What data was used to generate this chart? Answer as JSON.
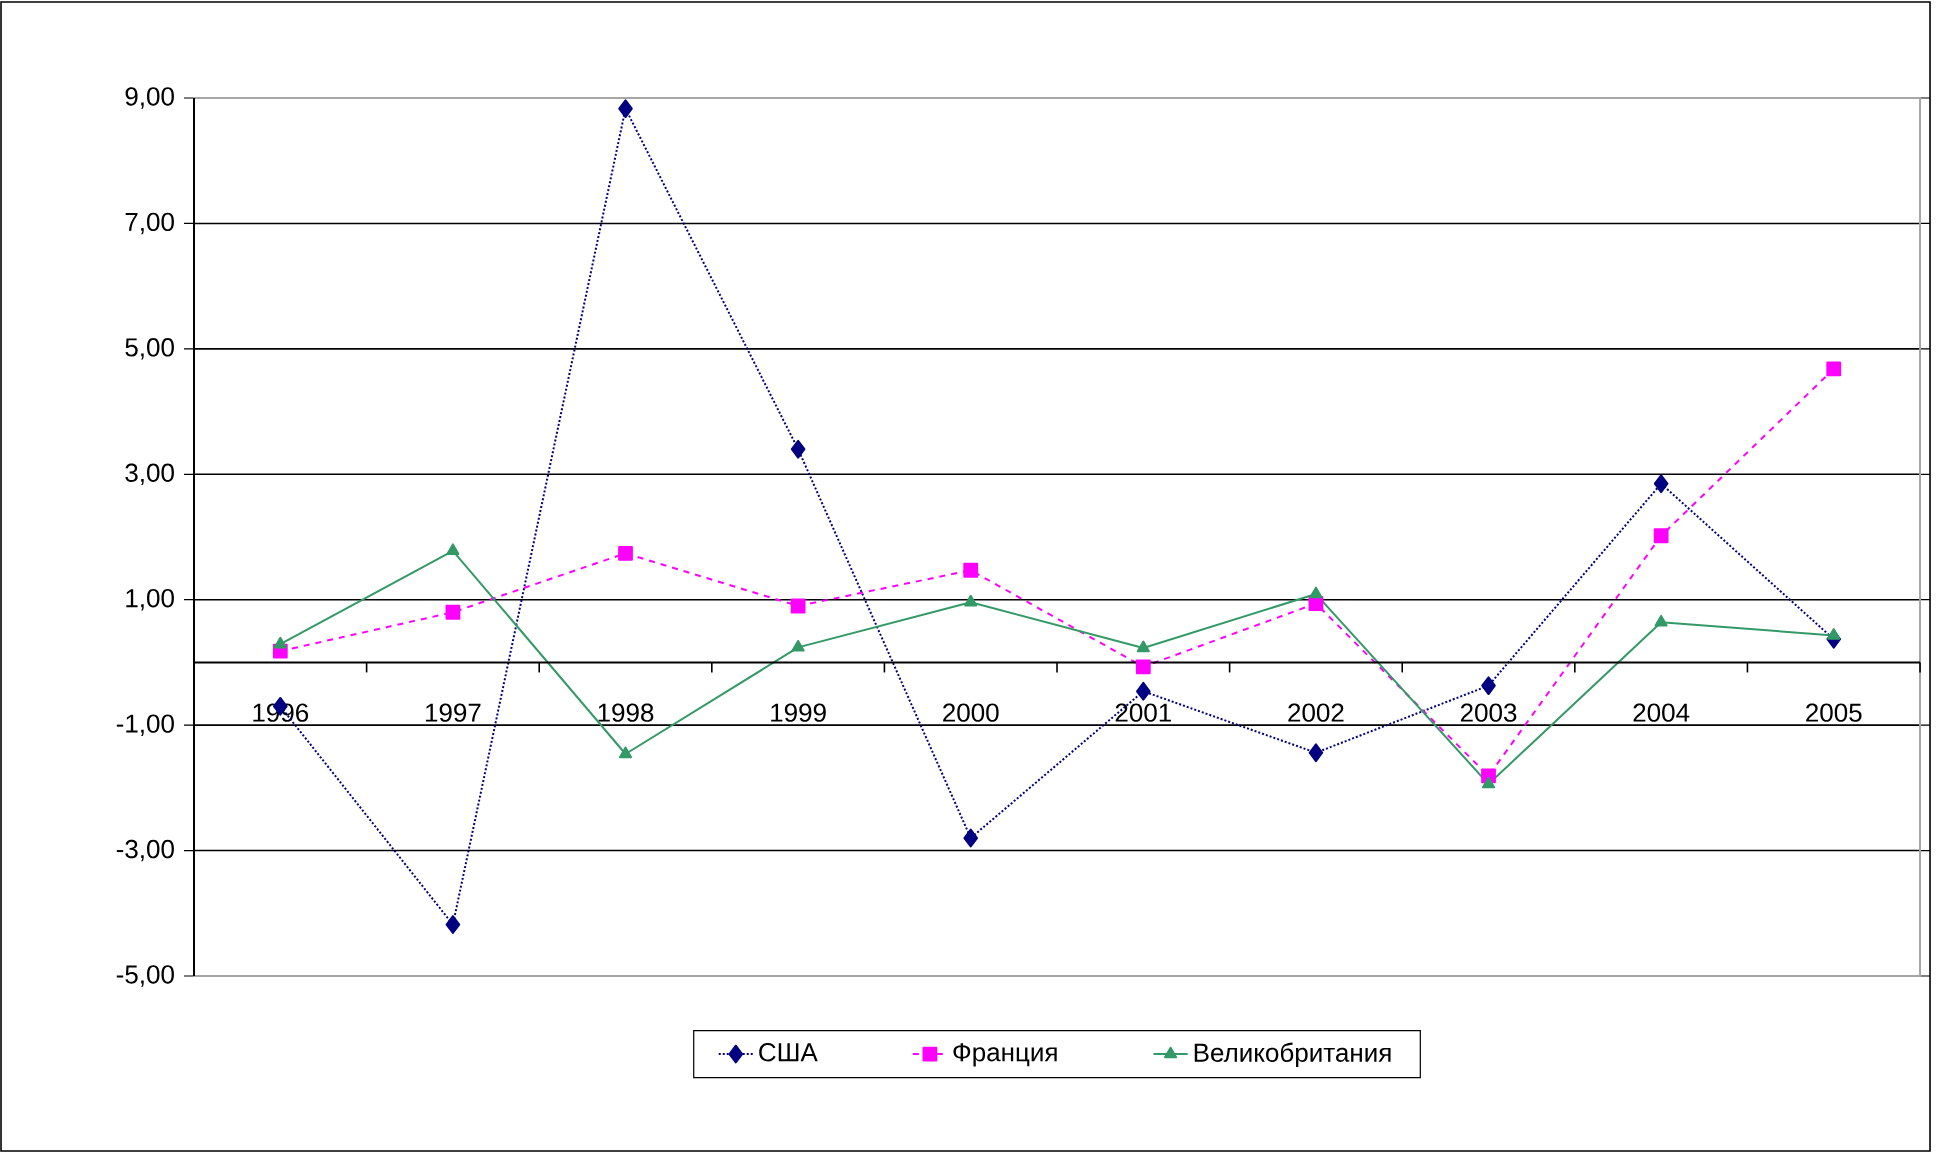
{
  "chart_data": {
    "type": "line",
    "categories": [
      "1996",
      "1997",
      "1998",
      "1999",
      "2000",
      "2001",
      "2002",
      "2003",
      "2004",
      "2005"
    ],
    "series": [
      {
        "name": "США",
        "color": "#000080",
        "marker": "diamond",
        "line_style": "dotted",
        "values": [
          -0.7,
          -4.18,
          8.83,
          3.4,
          -2.8,
          -0.46,
          -1.44,
          -0.37,
          2.85,
          0.37
        ]
      },
      {
        "name": "Франция",
        "color": "#ff00ff",
        "marker": "square",
        "line_style": "dashed",
        "values": [
          0.18,
          0.8,
          1.74,
          0.9,
          1.47,
          -0.07,
          0.94,
          -1.81,
          2.02,
          4.68
        ]
      },
      {
        "name": "Великобритания",
        "color": "#339966",
        "marker": "triangle",
        "line_style": "solid",
        "values": [
          0.29,
          1.78,
          -1.46,
          0.24,
          0.96,
          0.23,
          1.09,
          -1.94,
          0.64,
          0.43
        ]
      }
    ],
    "ylim": [
      -5,
      9
    ],
    "yticks": [
      {
        "value": -5,
        "label": "-5,00"
      },
      {
        "value": -3,
        "label": "-3,00"
      },
      {
        "value": -1,
        "label": "-1,00"
      },
      {
        "value": 1,
        "label": "1,00"
      },
      {
        "value": 3,
        "label": "3,00"
      },
      {
        "value": 5,
        "label": "5,00"
      },
      {
        "value": 7,
        "label": "7,00"
      },
      {
        "value": 9,
        "label": "9,00"
      }
    ],
    "grid": "y",
    "legend": "bottom"
  }
}
